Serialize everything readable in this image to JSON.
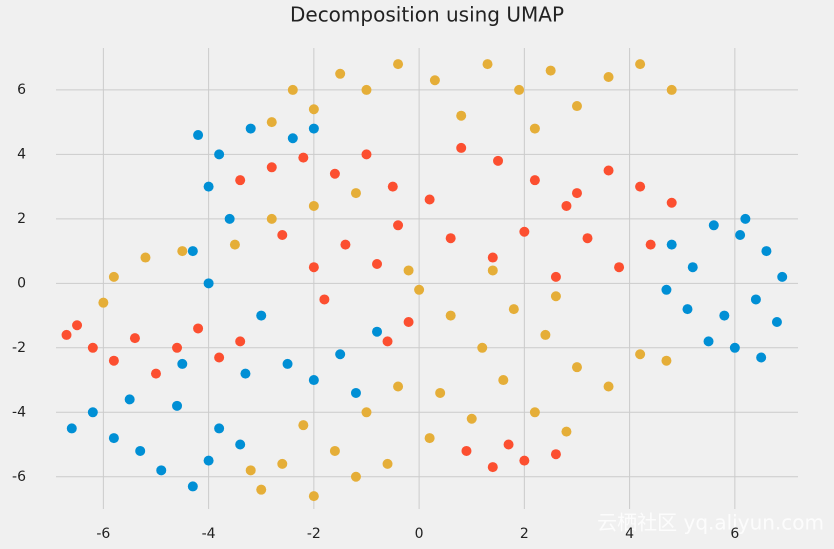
{
  "chart_data": {
    "type": "scatter",
    "title": "Decomposition using UMAP",
    "xlim": [
      -6.9,
      7.2
    ],
    "ylim": [
      -7,
      7.3
    ],
    "xticks": [
      -6,
      -4,
      -2,
      0,
      2,
      4,
      6
    ],
    "yticks": [
      -6,
      -4,
      -2,
      0,
      2,
      4,
      6
    ],
    "grid": true,
    "series": [
      {
        "color": "#008fd5",
        "x": [
          4.8,
          5.2,
          5.6,
          6.1,
          6.6,
          6.9,
          6.4,
          5.8,
          5.1,
          4.7,
          6.0,
          6.5,
          5.5,
          6.8,
          6.2,
          -6.6,
          -6.2,
          -5.8,
          -5.3,
          -4.9,
          -4.3,
          -4.0,
          -3.8,
          -4.6,
          -5.5,
          -3.4,
          -4.2,
          -3.8,
          -4.0,
          -3.6,
          -4.3,
          -4.0,
          -3.2,
          -2.4,
          -2.0,
          -3.0,
          -2.5,
          -2.0,
          -1.5,
          -3.3,
          -1.2,
          -0.8,
          -4.5
        ],
        "y": [
          1.2,
          0.5,
          1.8,
          1.5,
          1.0,
          0.2,
          -0.5,
          -1.0,
          -0.8,
          -0.2,
          -2.0,
          -2.3,
          -1.8,
          -1.2,
          2.0,
          -4.5,
          -4.0,
          -4.8,
          -5.2,
          -5.8,
          -6.3,
          -5.5,
          -4.5,
          -3.8,
          -3.6,
          -5.0,
          4.6,
          4.0,
          3.0,
          2.0,
          1.0,
          0.0,
          4.8,
          4.5,
          4.8,
          -1.0,
          -2.5,
          -3.0,
          -2.2,
          -2.8,
          -3.4,
          -1.5,
          -2.5
        ]
      },
      {
        "color": "#fc4f30",
        "x": [
          -6.5,
          -6.2,
          -5.8,
          -5.4,
          -5.0,
          -4.6,
          -4.2,
          -3.8,
          -3.4,
          -6.7,
          -3.4,
          -2.8,
          -2.2,
          -1.6,
          -1.0,
          -0.5,
          0.2,
          0.8,
          1.5,
          2.2,
          2.8,
          -2.6,
          -2.0,
          -1.4,
          -0.8,
          -0.4,
          0.6,
          1.4,
          2.0,
          -1.8,
          -0.6,
          -0.2,
          3.0,
          3.6,
          4.2,
          4.8,
          4.4,
          3.8,
          3.2,
          2.6,
          0.9,
          1.4,
          2.0,
          2.6,
          1.7
        ],
        "y": [
          -1.3,
          -2.0,
          -2.4,
          -1.7,
          -2.8,
          -2.0,
          -1.4,
          -2.3,
          -1.8,
          -1.6,
          3.2,
          3.6,
          3.9,
          3.4,
          4.0,
          3.0,
          2.6,
          4.2,
          3.8,
          3.2,
          2.4,
          1.5,
          0.5,
          1.2,
          0.6,
          1.8,
          1.4,
          0.8,
          1.6,
          -0.5,
          -1.8,
          -1.2,
          2.8,
          3.5,
          3.0,
          2.5,
          1.2,
          0.5,
          1.4,
          0.2,
          -5.2,
          -5.7,
          -5.5,
          -5.3,
          -5.0
        ]
      },
      {
        "color": "#e5ae38",
        "x": [
          -2.4,
          -2.0,
          -1.5,
          -1.0,
          -0.4,
          0.3,
          0.8,
          1.3,
          1.9,
          2.5,
          3.0,
          3.6,
          4.2,
          4.8,
          -2.8,
          2.2,
          0.0,
          0.6,
          1.2,
          1.8,
          2.4,
          3.0,
          3.6,
          4.2,
          4.7,
          0.4,
          1.0,
          1.6,
          2.2,
          2.8,
          0.2,
          -0.2,
          1.4,
          2.6,
          -6.0,
          -5.8,
          -5.2,
          -4.5,
          -3.5,
          -2.8,
          -2.0,
          -1.2,
          -3.0,
          -2.6,
          -2.0,
          -1.6,
          -1.2,
          -0.6,
          -2.2,
          -1.0,
          -0.4,
          -3.2
        ],
        "y": [
          6.0,
          5.4,
          6.5,
          6.0,
          6.8,
          6.3,
          5.2,
          6.8,
          6.0,
          6.6,
          5.5,
          6.4,
          6.8,
          6.0,
          5.0,
          4.8,
          -0.2,
          -1.0,
          -2.0,
          -0.8,
          -1.6,
          -2.6,
          -3.2,
          -2.2,
          -2.4,
          -3.4,
          -4.2,
          -3.0,
          -4.0,
          -4.6,
          -4.8,
          0.4,
          0.4,
          -0.4,
          -0.6,
          0.2,
          0.8,
          1.0,
          1.2,
          2.0,
          2.4,
          2.8,
          -6.4,
          -5.6,
          -6.6,
          -5.2,
          -6.0,
          -5.6,
          -4.4,
          -4.0,
          -3.2,
          -5.8
        ]
      }
    ]
  },
  "watermark": "云栖社区 yq.aliyun.com"
}
